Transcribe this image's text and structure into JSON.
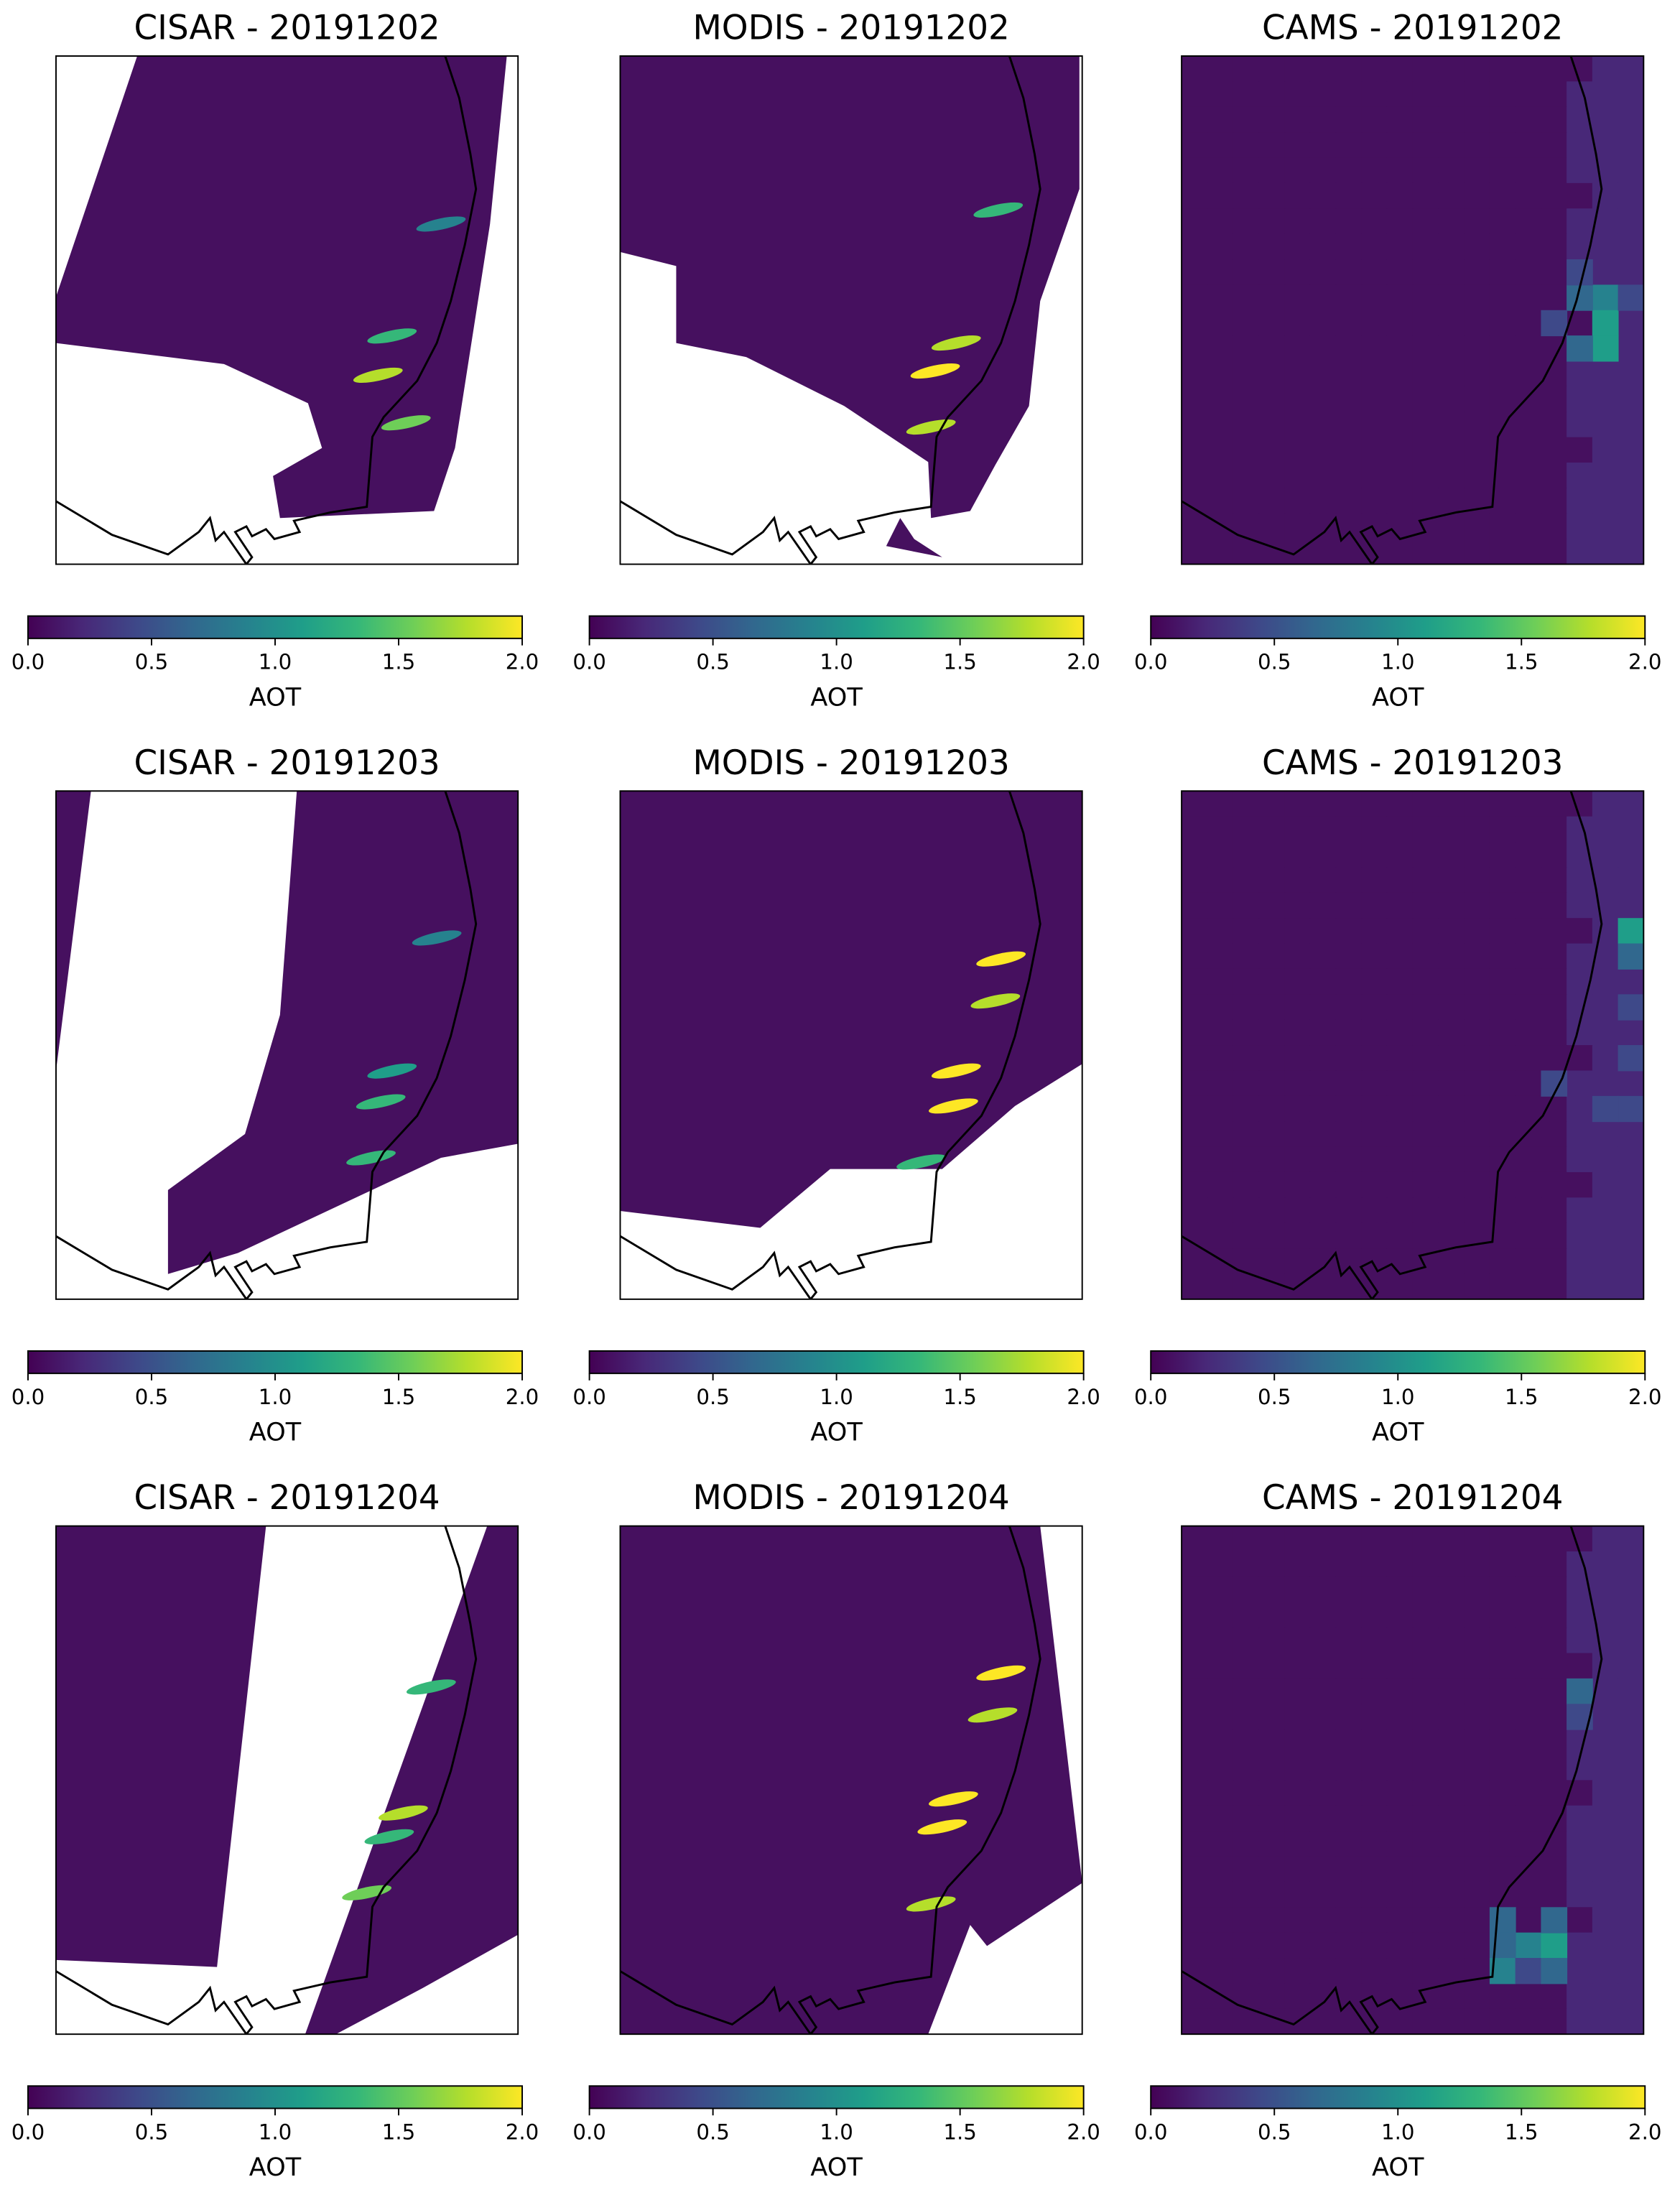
{
  "colormap": [
    "#440154",
    "#482878",
    "#3e4989",
    "#31688e",
    "#26828e",
    "#1f9e89",
    "#35b779",
    "#6ece58",
    "#b5de2b",
    "#fde725"
  ],
  "panels": [
    {
      "title": "CISAR - 20191202",
      "colorbar": {
        "label": "AOT",
        "lim": [
          0,
          2
        ],
        "ticks": [
          {
            "value": 0,
            "label": "0.0"
          },
          {
            "value": 0.5,
            "label": "0.5"
          },
          {
            "value": 1,
            "label": "1.0"
          },
          {
            "value": 1.5,
            "label": "1.5"
          },
          {
            "value": 2,
            "label": "2.0"
          }
        ]
      }
    },
    {
      "title": "MODIS - 20191202",
      "colorbar": {
        "label": "AOT",
        "lim": [
          0,
          2
        ],
        "ticks": [
          {
            "value": 0,
            "label": "0.0"
          },
          {
            "value": 0.5,
            "label": "0.5"
          },
          {
            "value": 1,
            "label": "1.0"
          },
          {
            "value": 1.5,
            "label": "1.5"
          },
          {
            "value": 2,
            "label": "2.0"
          }
        ]
      }
    },
    {
      "title": "CAMS - 20191202",
      "colorbar": {
        "label": "AOT",
        "lim": [
          0,
          2
        ],
        "ticks": [
          {
            "value": 0,
            "label": "0.0"
          },
          {
            "value": 0.5,
            "label": "0.5"
          },
          {
            "value": 1,
            "label": "1.0"
          },
          {
            "value": 1.5,
            "label": "1.5"
          },
          {
            "value": 2,
            "label": "2.0"
          }
        ]
      }
    },
    {
      "title": "CISAR - 20191203",
      "colorbar": {
        "label": "AOT",
        "lim": [
          0,
          2
        ],
        "ticks": [
          {
            "value": 0,
            "label": "0.0"
          },
          {
            "value": 0.5,
            "label": "0.5"
          },
          {
            "value": 1,
            "label": "1.0"
          },
          {
            "value": 1.5,
            "label": "1.5"
          },
          {
            "value": 2,
            "label": "2.0"
          }
        ]
      }
    },
    {
      "title": "MODIS - 20191203",
      "colorbar": {
        "label": "AOT",
        "lim": [
          0,
          2
        ],
        "ticks": [
          {
            "value": 0,
            "label": "0.0"
          },
          {
            "value": 0.5,
            "label": "0.5"
          },
          {
            "value": 1,
            "label": "1.0"
          },
          {
            "value": 1.5,
            "label": "1.5"
          },
          {
            "value": 2,
            "label": "2.0"
          }
        ]
      }
    },
    {
      "title": "CAMS - 20191203",
      "colorbar": {
        "label": "AOT",
        "lim": [
          0,
          2
        ],
        "ticks": [
          {
            "value": 0,
            "label": "0.0"
          },
          {
            "value": 0.5,
            "label": "0.5"
          },
          {
            "value": 1,
            "label": "1.0"
          },
          {
            "value": 1.5,
            "label": "1.5"
          },
          {
            "value": 2,
            "label": "2.0"
          }
        ]
      }
    },
    {
      "title": "CISAR - 20191204",
      "colorbar": {
        "label": "AOT",
        "lim": [
          0,
          2
        ],
        "ticks": [
          {
            "value": 0,
            "label": "0.0"
          },
          {
            "value": 0.5,
            "label": "0.5"
          },
          {
            "value": 1,
            "label": "1.0"
          },
          {
            "value": 1.5,
            "label": "1.5"
          },
          {
            "value": 2,
            "label": "2.0"
          }
        ]
      }
    },
    {
      "title": "MODIS - 20191204",
      "colorbar": {
        "label": "AOT",
        "lim": [
          0,
          2
        ],
        "ticks": [
          {
            "value": 0,
            "label": "0.0"
          },
          {
            "value": 0.5,
            "label": "0.5"
          },
          {
            "value": 1,
            "label": "1.0"
          },
          {
            "value": 1.5,
            "label": "1.5"
          },
          {
            "value": 2,
            "label": "2.0"
          }
        ]
      }
    },
    {
      "title": "CAMS - 20191204",
      "colorbar": {
        "label": "AOT",
        "lim": [
          0,
          2
        ],
        "ticks": [
          {
            "value": 0,
            "label": "0.0"
          },
          {
            "value": 0.5,
            "label": "0.5"
          },
          {
            "value": 1,
            "label": "1.0"
          },
          {
            "value": 1.5,
            "label": "1.5"
          },
          {
            "value": 2,
            "label": "2.0"
          }
        ]
      }
    }
  ]
}
